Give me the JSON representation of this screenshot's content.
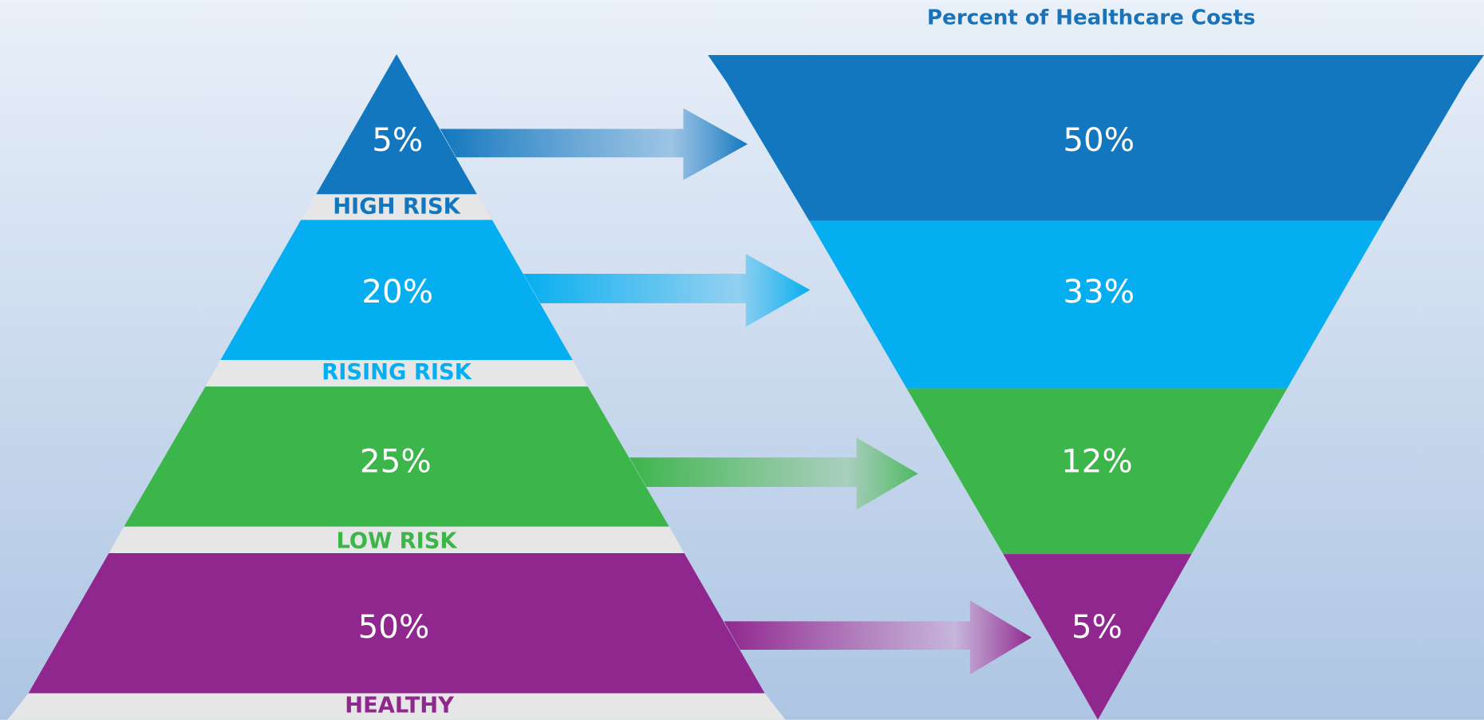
{
  "title": "Percent of Healthcare Costs",
  "pyramid": [
    {
      "percent": "5%",
      "label": "HIGH RISK"
    },
    {
      "percent": "20%",
      "label": "RISING RISK"
    },
    {
      "percent": "25%",
      "label": "LOW RISK"
    },
    {
      "percent": "50%",
      "label": "HEALTHY"
    }
  ],
  "funnel": [
    {
      "percent": "50%"
    },
    {
      "percent": "33%"
    },
    {
      "percent": "12%"
    },
    {
      "percent": "5%"
    }
  ]
}
